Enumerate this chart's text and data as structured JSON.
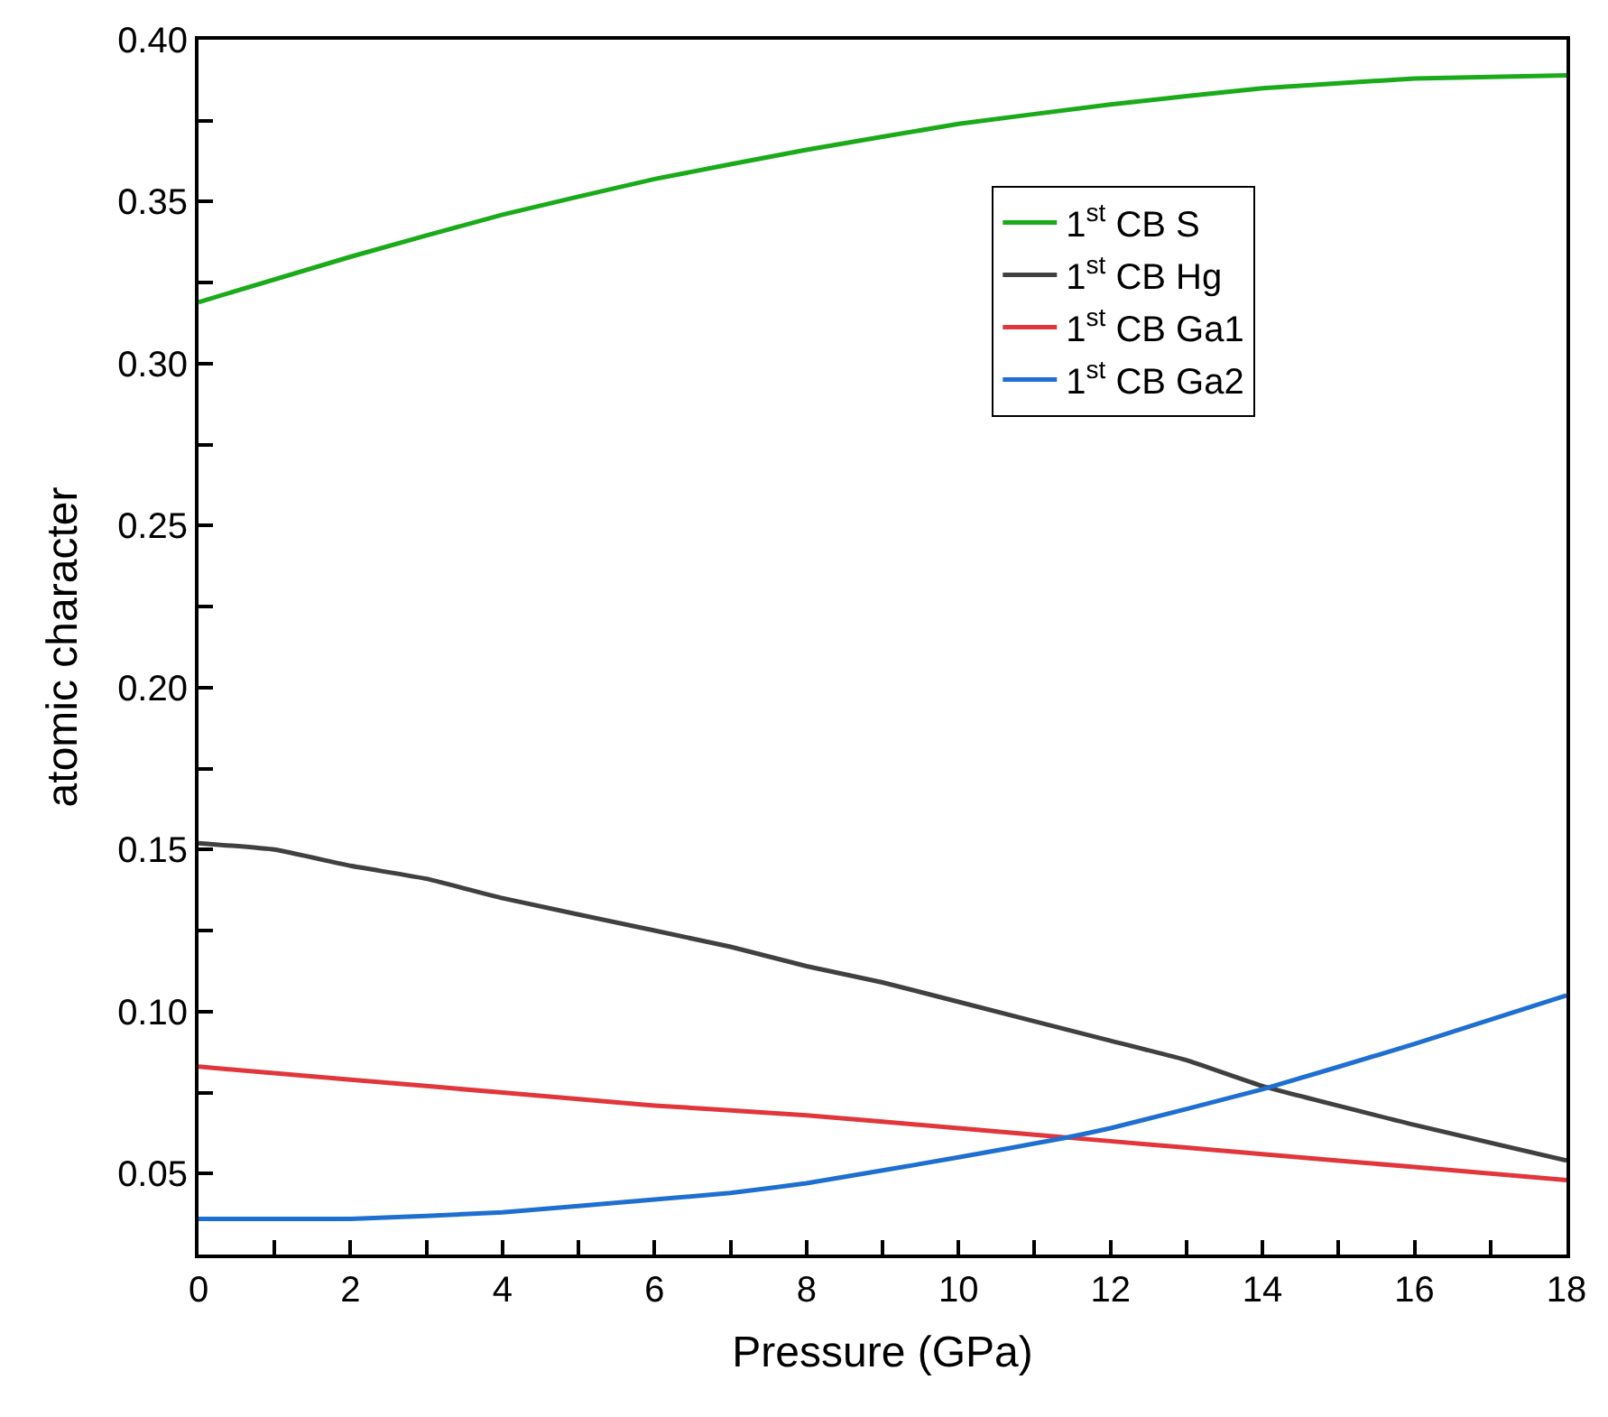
{
  "chart_data": {
    "type": "line",
    "xlabel": "Pressure (GPa)",
    "ylabel": "atomic character",
    "xlim": [
      0,
      18
    ],
    "ylim": [
      0.025,
      0.4
    ],
    "xticks": [
      0,
      {
        "value": 1,
        "label": null
      },
      2,
      {
        "value": 3,
        "label": null
      },
      4,
      {
        "value": 5,
        "label": null
      },
      6,
      {
        "value": 7,
        "label": null
      },
      8,
      {
        "value": 9,
        "label": null
      },
      10,
      {
        "value": 11,
        "label": null
      },
      12,
      {
        "value": 13,
        "label": null
      },
      14,
      {
        "value": 15,
        "label": null
      },
      16,
      {
        "value": 17,
        "label": null
      },
      18
    ],
    "yticks": [
      {
        "value": 0.05,
        "label": "0.05"
      },
      {
        "value": 0.075,
        "label": null
      },
      {
        "value": 0.1,
        "label": "0.10"
      },
      {
        "value": 0.125,
        "label": null
      },
      {
        "value": 0.15,
        "label": "0.15"
      },
      {
        "value": 0.175,
        "label": null
      },
      {
        "value": 0.2,
        "label": "0.20"
      },
      {
        "value": 0.225,
        "label": null
      },
      {
        "value": 0.25,
        "label": "0.25"
      },
      {
        "value": 0.275,
        "label": null
      },
      {
        "value": 0.3,
        "label": "0.30"
      },
      {
        "value": 0.325,
        "label": null
      },
      {
        "value": 0.35,
        "label": "0.35"
      },
      {
        "value": 0.375,
        "label": null
      },
      {
        "value": 0.4,
        "label": "0.40"
      }
    ],
    "legend": "top right",
    "marker": "none",
    "line_style": "solid",
    "series": [
      {
        "name": "1$^{st}$ CB S",
        "color": "#1aaa1a",
        "x": [
          0,
          2,
          4,
          6,
          8,
          10,
          12,
          14,
          16,
          18
        ],
        "values": [
          0.319,
          0.333,
          0.346,
          0.357,
          0.366,
          0.374,
          0.38,
          0.385,
          0.388,
          0.389
        ]
      },
      {
        "name": "1$^{st}$ CB Hg",
        "color": "#404040",
        "x": [
          0,
          1,
          2,
          3,
          4,
          6,
          7,
          8,
          9,
          10,
          12,
          13,
          14,
          16,
          18
        ],
        "values": [
          0.152,
          0.15,
          0.145,
          0.141,
          0.135,
          0.125,
          0.12,
          0.114,
          0.109,
          0.103,
          0.091,
          0.085,
          0.077,
          0.065,
          0.054
        ]
      },
      {
        "name": "1$^{st}$ CB Ga1",
        "color": "#e0363c",
        "x": [
          0,
          2,
          4,
          6,
          8,
          10,
          12,
          14,
          16,
          18
        ],
        "values": [
          0.083,
          0.079,
          0.075,
          0.071,
          0.068,
          0.064,
          0.06,
          0.056,
          0.052,
          0.048
        ]
      },
      {
        "name": "1$^{st}$ CB Ga2",
        "color": "#1f6fd0",
        "x": [
          0,
          2,
          4,
          6,
          7,
          8,
          10,
          11.4,
          12,
          14,
          16,
          18
        ],
        "values": [
          0.036,
          0.036,
          0.038,
          0.042,
          0.044,
          0.047,
          0.055,
          0.061,
          0.064,
          0.076,
          0.09,
          0.105
        ]
      }
    ]
  }
}
